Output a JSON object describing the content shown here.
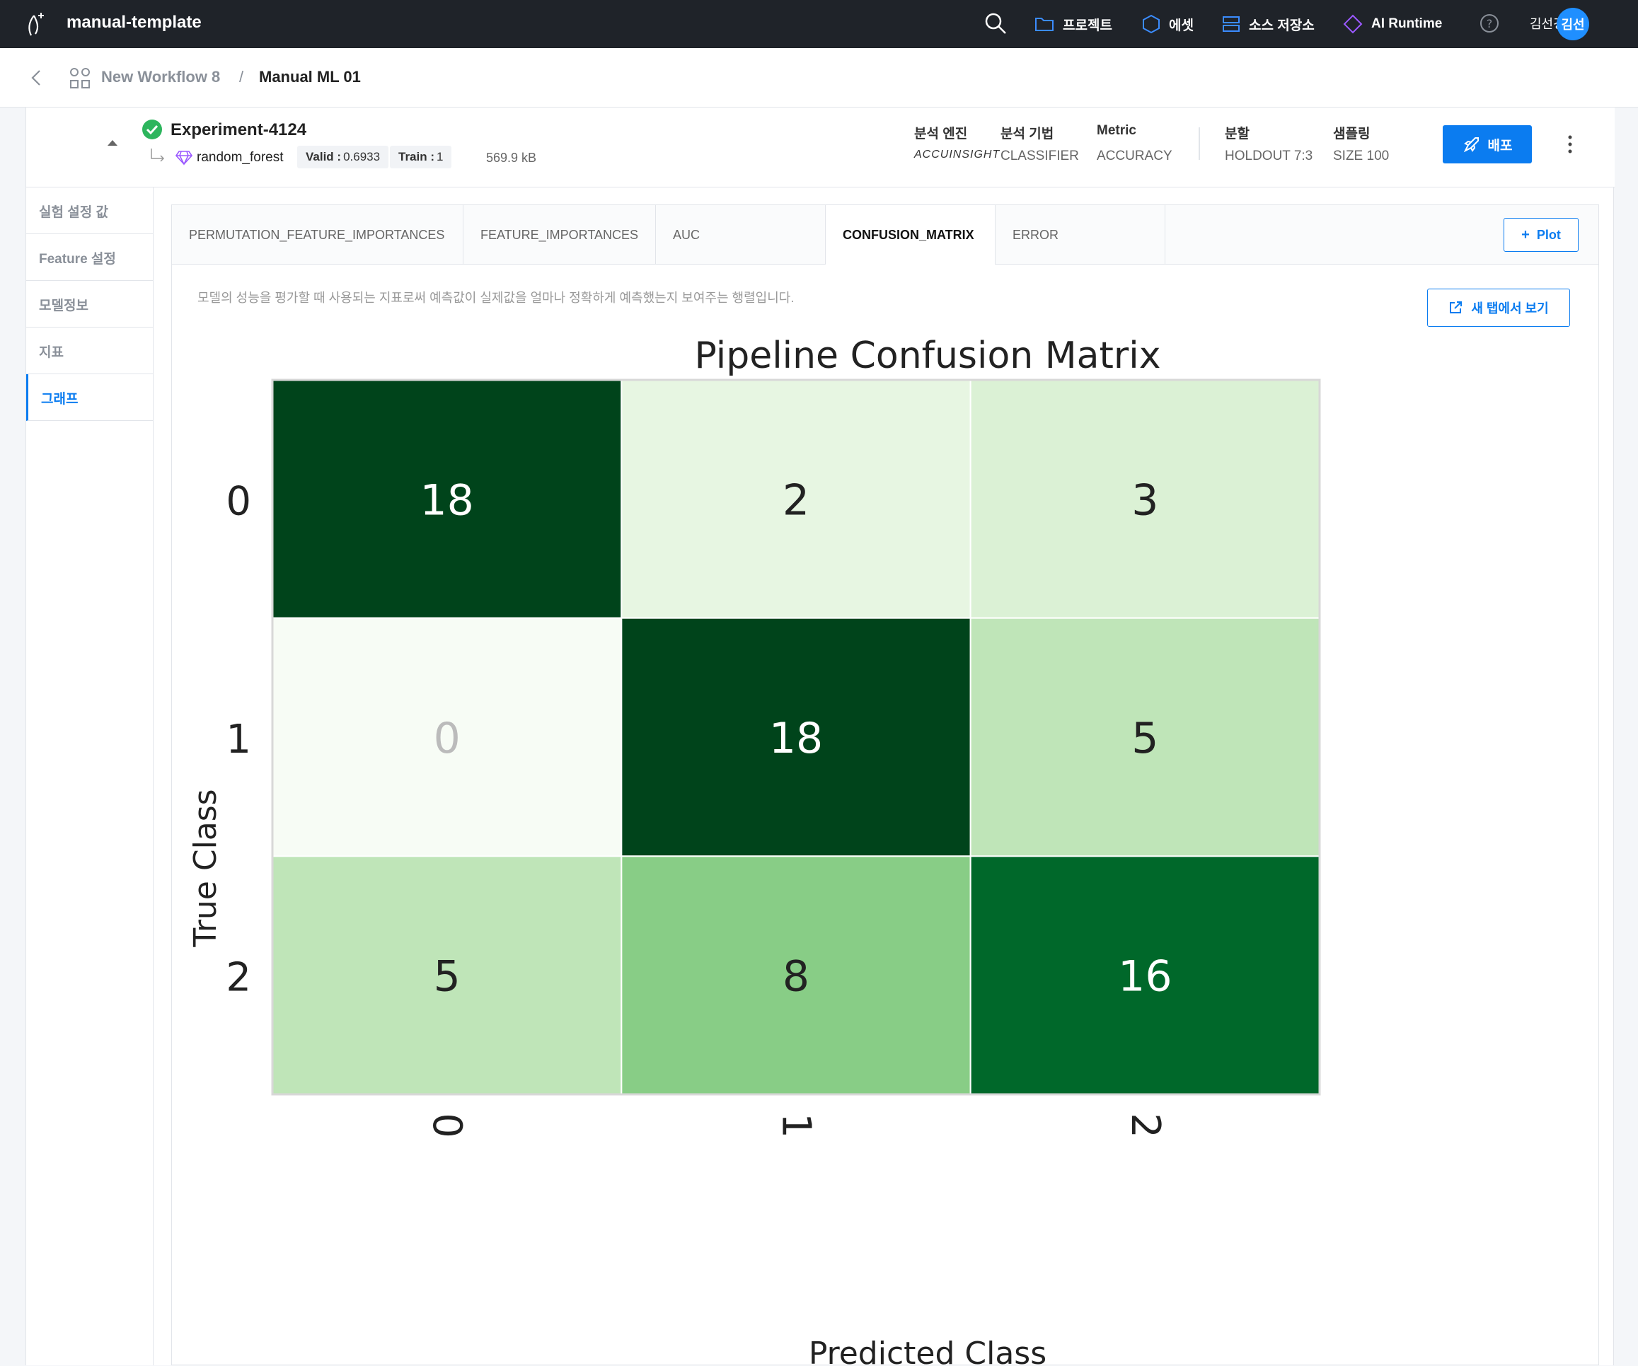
{
  "topbar": {
    "app_name": "manual-template",
    "nav": [
      {
        "label": "프로젝트",
        "icon": "folder-icon"
      },
      {
        "label": "에셋",
        "icon": "hexagon-icon"
      },
      {
        "label": "소스 저장소",
        "icon": "database-icon"
      },
      {
        "label": "AI Runtime",
        "icon": "diamond-icon"
      }
    ],
    "user_name": "김선경",
    "avatar_initials": "김선"
  },
  "breadcrumb": {
    "workflow": "New Workflow 8",
    "separator": "/",
    "current": "Manual ML 01"
  },
  "experiment": {
    "name": "Experiment-4124",
    "model": "random_forest",
    "valid_label": "Valid :",
    "valid_value": "0.6933",
    "train_label": "Train :",
    "train_value": "1",
    "size": "569.9 kB",
    "meta": [
      {
        "key": "분석 엔진",
        "value": "ACCUINSIGHT"
      },
      {
        "key": "분석 기법",
        "value": "CLASSIFIER"
      },
      {
        "key": "Metric",
        "value": "ACCURACY"
      },
      {
        "key": "분할",
        "value": "HOLDOUT 7:3"
      },
      {
        "key": "샘플링",
        "value": "SIZE 100"
      }
    ],
    "deploy_label": "배포"
  },
  "sidebar": {
    "items": [
      {
        "label": "실험 설정 값"
      },
      {
        "label": "Feature 설정"
      },
      {
        "label": "모델정보"
      },
      {
        "label": "지표"
      },
      {
        "label": "그래프"
      }
    ],
    "active_index": 4
  },
  "tabs": [
    {
      "label": "PERMUTATION_FEATURE_IMPORTANCES"
    },
    {
      "label": "FEATURE_IMPORTANCES"
    },
    {
      "label": "AUC"
    },
    {
      "label": "CONFUSION_MATRIX"
    },
    {
      "label": "ERROR"
    }
  ],
  "active_tab": 3,
  "plot_button": "Plot",
  "description": "모델의 성능을 평가할 때 사용되는 지표로써 예측값이 실제값을 얼마나 정확하게 예측했는지 보여주는 행렬입니다.",
  "new_tab_button": "새 탭에서 보기",
  "chart_data": {
    "type": "heatmap",
    "title": "Pipeline Confusion Matrix",
    "xlabel": "Predicted Class",
    "ylabel": "True Class",
    "x_categories": [
      "0",
      "1",
      "2"
    ],
    "y_categories": [
      "0",
      "1",
      "2"
    ],
    "values": [
      [
        18,
        2,
        3
      ],
      [
        0,
        18,
        5
      ],
      [
        5,
        8,
        16
      ]
    ],
    "colormap": "Greens",
    "grid": false
  },
  "colors": {
    "topbar_bg": "#1f2329",
    "accent": "#0b7cf0",
    "success": "#2db55d"
  }
}
